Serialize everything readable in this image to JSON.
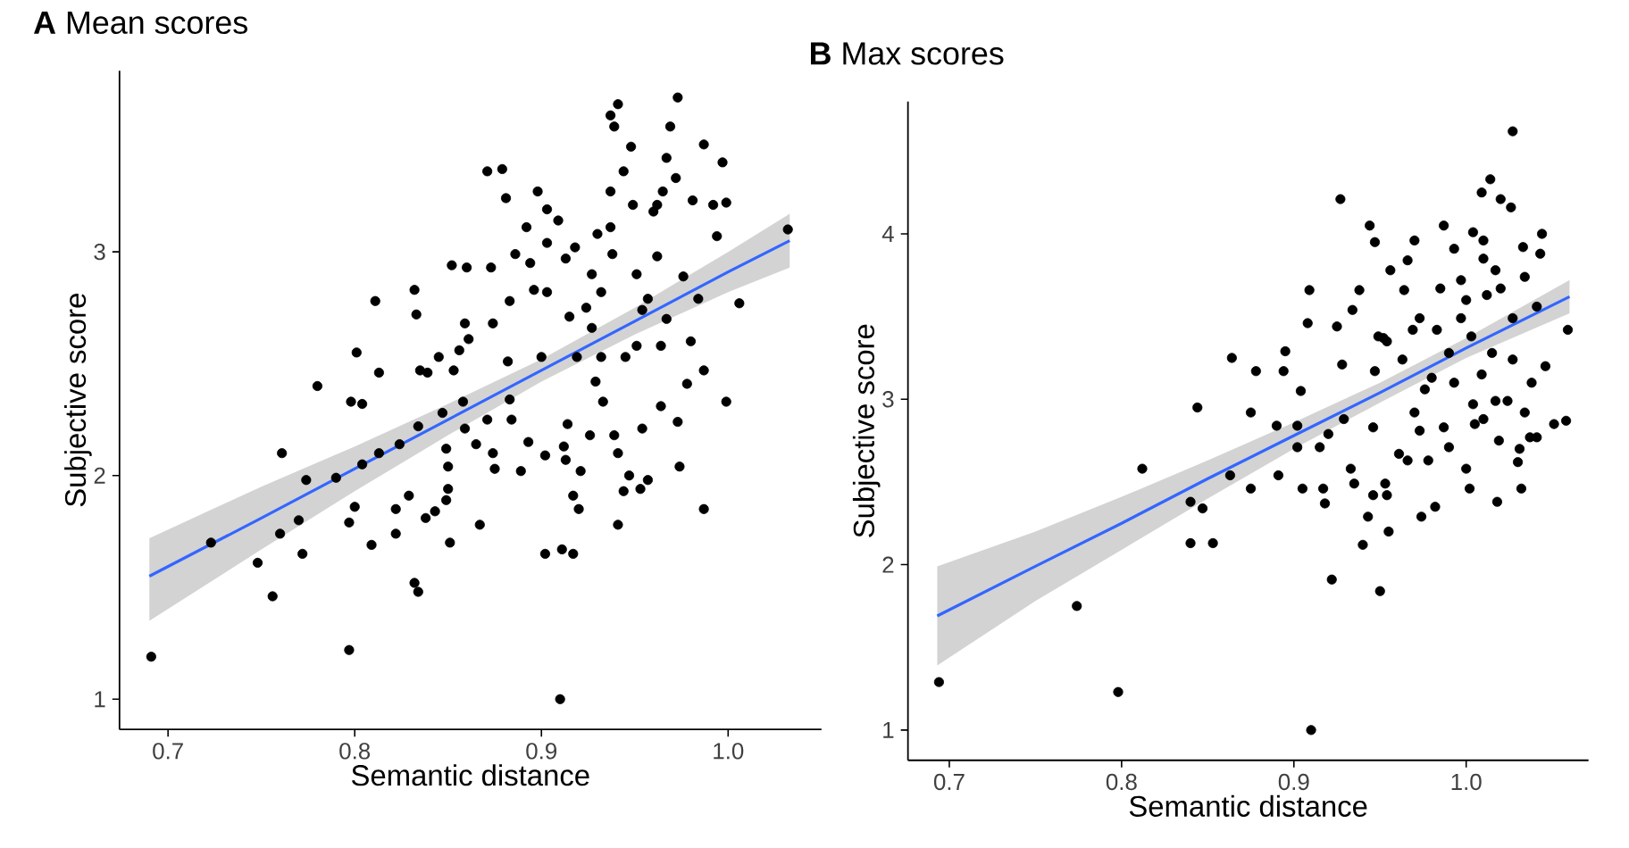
{
  "chart_data": [
    {
      "type": "scatter",
      "title": "**A**   Mean scores",
      "xlabel": "Semantic distance",
      "ylabel": "Subjective score",
      "xlim": [
        0.674,
        1.05
      ],
      "ylim": [
        0.865,
        3.81
      ],
      "xticks": [
        0.7,
        0.8,
        0.9,
        {
          "value": 1.0,
          "label": "1.0"
        }
      ],
      "yticks": [
        1,
        2,
        3
      ],
      "series": [
        {
          "marker": "circle",
          "color": "#000000",
          "x": [
            0.691,
            0.723,
            0.748,
            0.756,
            0.761,
            0.76,
            0.772,
            0.77,
            0.774,
            0.78,
            0.79,
            0.797,
            0.797,
            0.8,
            0.798,
            0.804,
            0.801,
            0.809,
            0.804,
            0.811,
            0.813,
            0.813,
            0.822,
            0.822,
            0.824,
            0.829,
            0.832,
            0.833,
            0.832,
            0.834,
            0.834,
            0.835,
            0.839,
            0.838,
            0.843,
            0.845,
            0.847,
            0.849,
            0.85,
            0.85,
            0.849,
            0.851,
            0.852,
            0.853,
            0.856,
            0.858,
            0.859,
            0.86,
            0.861,
            0.859,
            0.867,
            0.865,
            0.871,
            0.873,
            0.874,
            0.874,
            0.875,
            0.871,
            0.879,
            0.881,
            0.883,
            0.886,
            0.882,
            0.883,
            0.884,
            0.889,
            0.892,
            0.893,
            0.894,
            0.896,
            0.898,
            0.902,
            0.903,
            0.903,
            0.9,
            0.902,
            0.903,
            0.909,
            0.911,
            0.91,
            0.913,
            0.912,
            0.913,
            0.917,
            0.917,
            0.92,
            0.918,
            0.921,
            0.915,
            0.914,
            0.924,
            0.927,
            0.93,
            0.932,
            0.926,
            0.933,
            0.937,
            0.939,
            0.941,
            0.937,
            0.937,
            0.938,
            0.941,
            0.941,
            0.939,
            0.944,
            0.944,
            0.948,
            0.949,
            0.947,
            0.953,
            0.957,
            0.957,
            0.954,
            0.96,
            0.962,
            0.965,
            0.964,
            0.967,
            0.969,
            0.972,
            0.973,
            0.974,
            0.973,
            0.978,
            0.98,
            0.981,
            0.987,
            0.987,
            0.987,
            0.992,
            0.997,
            0.999,
            0.999,
            0.994,
            1.006,
            1.032,
            0.984,
            0.954,
            0.927,
            0.919,
            0.951,
            0.964,
            0.929,
            0.945,
            0.967,
            0.932,
            0.951,
            0.976,
            0.962
          ],
          "values": [
            1.19,
            1.7,
            1.61,
            1.46,
            2.1,
            1.74,
            1.65,
            1.8,
            1.98,
            2.4,
            1.99,
            1.22,
            1.79,
            1.86,
            2.33,
            2.32,
            2.55,
            1.69,
            2.05,
            2.78,
            2.1,
            2.46,
            1.74,
            1.85,
            2.14,
            1.91,
            2.83,
            2.72,
            1.52,
            1.48,
            2.22,
            2.47,
            2.46,
            1.81,
            1.84,
            2.53,
            2.28,
            2.12,
            2.04,
            1.94,
            1.89,
            1.7,
            2.94,
            2.47,
            2.56,
            2.33,
            2.68,
            2.93,
            2.61,
            2.21,
            1.78,
            2.14,
            3.36,
            2.93,
            2.68,
            2.1,
            2.03,
            2.25,
            3.37,
            3.24,
            2.78,
            2.99,
            2.51,
            2.34,
            2.25,
            2.02,
            3.11,
            2.15,
            2.95,
            2.83,
            3.27,
            1.65,
            3.04,
            2.82,
            2.53,
            2.09,
            3.19,
            3.14,
            1.67,
            1.0,
            2.97,
            2.13,
            2.07,
            1.65,
            1.91,
            1.85,
            3.02,
            2.02,
            2.71,
            2.23,
            2.75,
            2.9,
            3.08,
            2.53,
            2.18,
            2.33,
            3.61,
            3.56,
            3.66,
            3.27,
            3.11,
            2.99,
            1.78,
            2.1,
            2.18,
            3.36,
            1.93,
            3.47,
            3.21,
            2.0,
            1.94,
            1.98,
            2.79,
            2.21,
            3.18,
            3.21,
            3.27,
            2.31,
            3.42,
            3.56,
            3.33,
            3.69,
            2.04,
            2.24,
            2.41,
            2.6,
            3.23,
            3.48,
            1.85,
            2.47,
            3.21,
            3.4,
            3.22,
            2.33,
            3.07,
            2.77,
            3.1,
            2.79,
            2.74,
            2.66,
            2.53,
            2.58,
            2.58,
            2.42,
            2.53,
            2.7,
            2.82,
            2.9,
            2.89,
            2.98
          ]
        },
        {
          "type": "line",
          "marker": "none",
          "line_style": "solid",
          "color": "#3366ff",
          "x": [
            0.69,
            0.75,
            0.8,
            0.85,
            0.9,
            0.95,
            1.0,
            1.033
          ],
          "values": [
            1.55,
            1.81,
            2.03,
            2.25,
            2.47,
            2.69,
            2.91,
            3.05
          ],
          "lower": [
            1.35,
            1.67,
            1.93,
            2.18,
            2.42,
            2.63,
            2.82,
            2.93
          ],
          "upper": [
            1.72,
            1.95,
            2.13,
            2.32,
            2.52,
            2.75,
            3.0,
            3.17
          ]
        }
      ]
    },
    {
      "type": "scatter",
      "title": "**B**   Max scores",
      "xlabel": "Semantic distance",
      "ylabel": "Subjective score",
      "xlim": [
        0.676,
        1.071
      ],
      "ylim": [
        0.817,
        4.8
      ],
      "xticks": [
        0.7,
        0.8,
        0.9,
        {
          "value": 1.0,
          "label": "1.0"
        }
      ],
      "yticks": [
        1,
        2,
        3,
        4
      ],
      "series": [
        {
          "marker": "circle",
          "color": "#000000",
          "x": [
            0.694,
            0.774,
            0.798,
            0.812,
            0.84,
            0.84,
            0.847,
            0.844,
            0.853,
            0.863,
            0.864,
            0.875,
            0.875,
            0.878,
            0.89,
            0.891,
            0.894,
            0.895,
            0.902,
            0.902,
            0.904,
            0.905,
            0.908,
            0.909,
            0.91,
            0.915,
            0.917,
            0.918,
            0.92,
            0.922,
            0.927,
            0.925,
            0.928,
            0.929,
            0.933,
            0.935,
            0.934,
            0.938,
            0.94,
            0.943,
            0.944,
            0.947,
            0.946,
            0.946,
            0.947,
            0.95,
            0.953,
            0.955,
            0.954,
            0.952,
            0.956,
            0.964,
            0.966,
            0.97,
            0.961,
            0.966,
            0.973,
            0.974,
            0.978,
            0.976,
            0.973,
            0.982,
            0.985,
            0.987,
            0.99,
            0.987,
            0.993,
            1.0,
            1.002,
            0.997,
            1.004,
            1.004,
            1.005,
            1.009,
            1.014,
            1.015,
            1.018,
            1.019,
            1.01,
            1.02,
            1.027,
            1.026,
            1.03,
            1.032,
            1.033,
            1.038,
            1.037,
            1.044,
            1.043,
            1.046,
            1.051,
            1.058,
            1.059,
            1.02,
            1.012,
            1.027,
            1.003,
            0.997,
            0.99,
            1.009,
            1.027,
            1.017,
            1.034,
            0.983,
            0.969,
            0.963,
            0.98,
            0.993,
            1.034,
            1.041,
            1.01,
            1.017,
            1.0,
            1.024,
            1.041,
            0.954,
            0.949,
            0.97,
            1.01,
            1.031
          ],
          "values": [
            1.29,
            1.75,
            1.23,
            2.58,
            2.13,
            2.38,
            2.34,
            2.95,
            2.13,
            2.54,
            3.25,
            2.92,
            2.46,
            3.17,
            2.84,
            2.54,
            3.17,
            3.29,
            2.84,
            2.71,
            3.05,
            2.46,
            3.46,
            3.66,
            1.0,
            2.71,
            2.46,
            2.37,
            2.79,
            1.91,
            4.21,
            3.44,
            3.21,
            2.88,
            2.58,
            2.49,
            3.54,
            3.66,
            2.12,
            2.29,
            4.05,
            3.95,
            2.42,
            2.83,
            3.17,
            1.84,
            2.49,
            2.2,
            2.42,
            3.37,
            3.78,
            3.66,
            3.84,
            3.96,
            2.67,
            2.63,
            2.81,
            2.29,
            2.63,
            3.06,
            3.49,
            2.35,
            3.67,
            4.05,
            2.71,
            2.83,
            3.91,
            2.58,
            2.46,
            3.72,
            4.01,
            2.97,
            2.85,
            4.25,
            4.33,
            3.28,
            2.38,
            2.75,
            3.85,
            4.21,
            4.62,
            4.16,
            2.62,
            2.46,
            3.92,
            3.1,
            2.77,
            4.0,
            3.88,
            3.2,
            2.85,
            2.87,
            3.42,
            3.67,
            3.63,
            3.49,
            3.38,
            3.49,
            3.28,
            3.15,
            3.24,
            2.99,
            2.92,
            3.42,
            3.42,
            3.24,
            3.13,
            3.1,
            3.74,
            3.56,
            3.96,
            3.78,
            3.6,
            2.99,
            2.77,
            3.35,
            3.38,
            2.92,
            2.88,
            2.7
          ]
        },
        {
          "type": "line",
          "marker": "none",
          "line_style": "solid",
          "color": "#3366ff",
          "x": [
            0.693,
            0.75,
            0.8,
            0.85,
            0.9,
            0.95,
            1.0,
            1.06
          ],
          "values": [
            1.69,
            1.99,
            2.25,
            2.52,
            2.78,
            3.04,
            3.31,
            3.62
          ],
          "lower": [
            1.39,
            1.78,
            2.09,
            2.4,
            2.7,
            2.98,
            3.25,
            3.52
          ],
          "upper": [
            1.99,
            2.2,
            2.41,
            2.63,
            2.86,
            3.1,
            3.37,
            3.72
          ]
        }
      ]
    }
  ]
}
